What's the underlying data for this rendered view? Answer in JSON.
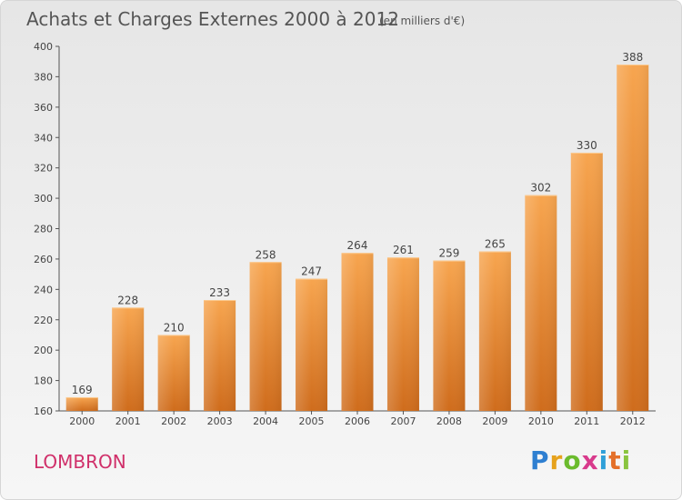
{
  "header": {
    "title": "Achats et Charges Externes 2000 à 2012",
    "unit": "(en milliers d'€)"
  },
  "footer": {
    "place": "LOMBRON",
    "logo": "Proxiti"
  },
  "colors": {
    "bar_top": "#f7a54f",
    "bar_bottom": "#cf6c1c",
    "axis": "#555555",
    "place": "#d0306a"
  },
  "chart_data": {
    "type": "bar",
    "title": "Achats et Charges Externes 2000 à 2012",
    "subtitle": "(en milliers d'€)",
    "categories": [
      "2000",
      "2001",
      "2002",
      "2003",
      "2004",
      "2005",
      "2006",
      "2007",
      "2008",
      "2009",
      "2010",
      "2011",
      "2012"
    ],
    "values": [
      169,
      228,
      210,
      233,
      258,
      247,
      264,
      261,
      259,
      265,
      302,
      330,
      388
    ],
    "ylim": [
      160,
      400
    ],
    "yticks": [
      160,
      180,
      200,
      220,
      240,
      260,
      280,
      300,
      320,
      340,
      360,
      380,
      400
    ],
    "grid": false,
    "data_labels": true
  }
}
